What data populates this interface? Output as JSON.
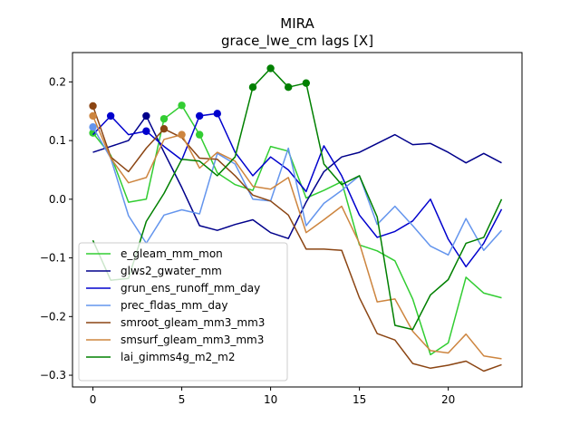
{
  "chart_data": {
    "type": "line",
    "title": "MIRA",
    "subtitle": "grace_lwe_cm lags [X]",
    "xlabel": "",
    "ylabel": "",
    "xlim": [
      -1.15,
      24.15
    ],
    "ylim": [
      -0.32,
      0.25
    ],
    "xticks": [
      0,
      5,
      10,
      15,
      20
    ],
    "yticks": [
      0.2,
      0.1,
      0.0,
      -0.1,
      -0.2,
      -0.3
    ],
    "ytick_labels": [
      "0.2",
      "0.1",
      "0.0",
      "−0.1",
      "−0.2",
      "−0.3"
    ],
    "grid": false,
    "legend_position": "lower-left",
    "x": [
      0,
      1,
      2,
      3,
      4,
      5,
      6,
      7,
      8,
      9,
      10,
      11,
      12,
      13,
      14,
      15,
      16,
      17,
      18,
      19,
      20,
      21,
      22,
      23
    ],
    "series": [
      {
        "name": "e_gleam_mm_mon",
        "color": "#32cd32",
        "values": [
          0.113,
          0.075,
          -0.005,
          0.0,
          0.137,
          0.16,
          0.11,
          0.045,
          0.025,
          0.015,
          0.09,
          0.082,
          0.002,
          0.015,
          0.03,
          -0.078,
          -0.088,
          -0.105,
          -0.17,
          -0.265,
          -0.245,
          -0.133,
          -0.16,
          -0.168
        ],
        "markers": [
          0,
          4,
          5,
          6
        ]
      },
      {
        "name": "glws2_gwater_mm",
        "color": "#00008b",
        "values": [
          0.08,
          0.09,
          0.1,
          0.142,
          0.08,
          0.02,
          -0.045,
          -0.053,
          -0.043,
          -0.035,
          -0.057,
          -0.067,
          -0.005,
          0.047,
          0.072,
          0.08,
          0.095,
          0.11,
          0.093,
          0.095,
          0.08,
          0.062,
          0.078,
          0.062
        ],
        "markers": [
          3
        ]
      },
      {
        "name": "grun_ens_runoff_mm_day",
        "color": "#0000cd",
        "values": [
          0.11,
          0.142,
          0.11,
          0.116,
          0.09,
          0.067,
          0.142,
          0.146,
          0.08,
          0.04,
          0.072,
          0.05,
          0.013,
          0.091,
          0.04,
          -0.027,
          -0.065,
          -0.055,
          -0.037,
          0.0,
          -0.068,
          -0.115,
          -0.075,
          -0.017
        ],
        "markers": [
          1,
          3,
          6,
          7
        ]
      },
      {
        "name": "prec_fldas_mm_day",
        "color": "#6495ed",
        "values": [
          0.123,
          0.07,
          -0.028,
          -0.075,
          -0.027,
          -0.018,
          -0.025,
          0.078,
          0.06,
          0.0,
          -0.003,
          0.087,
          -0.045,
          -0.007,
          0.015,
          0.04,
          -0.043,
          -0.012,
          -0.045,
          -0.08,
          -0.095,
          -0.033,
          -0.087,
          -0.053
        ],
        "markers": [
          0
        ]
      },
      {
        "name": "smroot_gleam_mm3_mm3",
        "color": "#8b4513",
        "values": [
          0.159,
          0.072,
          0.047,
          0.087,
          0.12,
          0.105,
          0.07,
          0.068,
          0.04,
          0.007,
          -0.003,
          -0.027,
          -0.085,
          -0.085,
          -0.087,
          -0.168,
          -0.229,
          -0.24,
          -0.28,
          -0.288,
          -0.283,
          -0.276,
          -0.293,
          -0.282
        ],
        "markers": [
          0,
          4
        ]
      },
      {
        "name": "smsurf_gleam_mm3_mm3",
        "color": "#cd853f",
        "values": [
          0.142,
          0.07,
          0.028,
          0.037,
          0.102,
          0.11,
          0.053,
          0.08,
          0.065,
          0.022,
          0.017,
          0.037,
          -0.057,
          -0.035,
          -0.012,
          -0.075,
          -0.175,
          -0.17,
          -0.225,
          -0.258,
          -0.262,
          -0.23,
          -0.267,
          -0.272
        ],
        "markers": [
          0,
          5
        ]
      },
      {
        "name": "lai_gimms4g_m2_m2",
        "color": "#008000",
        "values": [
          -0.07,
          -0.138,
          -0.135,
          -0.038,
          0.01,
          0.068,
          0.065,
          0.04,
          0.072,
          0.191,
          0.223,
          0.191,
          0.198,
          0.06,
          0.025,
          0.04,
          -0.03,
          -0.215,
          -0.222,
          -0.163,
          -0.137,
          -0.075,
          -0.065,
          0.0
        ],
        "markers": [
          9,
          10,
          11,
          12
        ]
      }
    ]
  }
}
